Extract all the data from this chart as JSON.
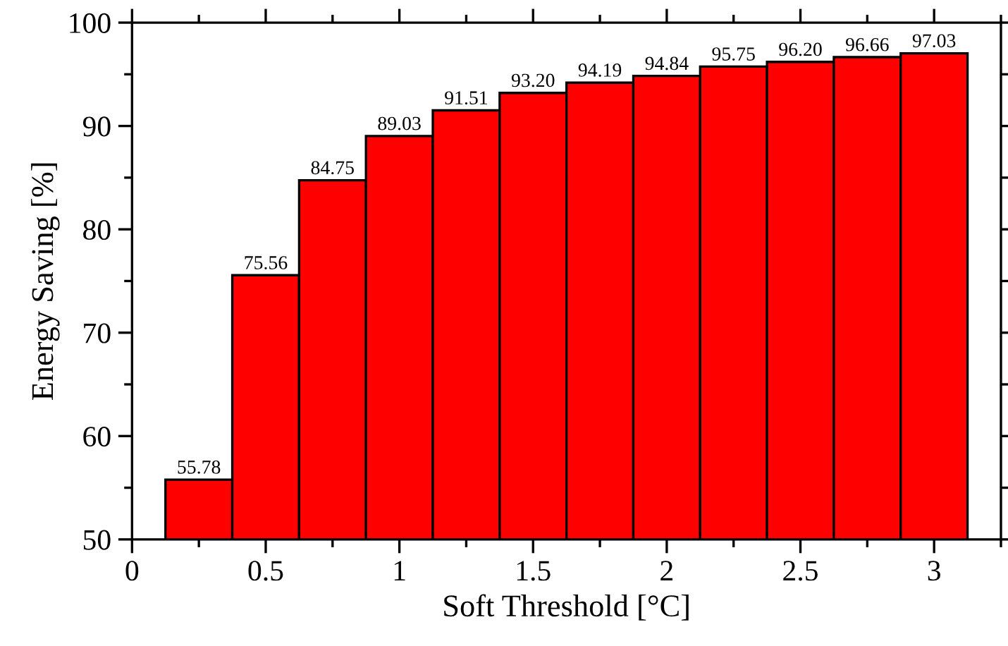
{
  "chart_data": {
    "type": "bar",
    "xlabel": "Soft Threshold [°C]",
    "ylabel": "Energy Saving [%]",
    "x": [
      0.25,
      0.5,
      0.75,
      1.0,
      1.25,
      1.5,
      1.75,
      2.0,
      2.25,
      2.5,
      2.75,
      3.0
    ],
    "series": [
      {
        "color": "#ff0000",
        "values": [
          55.78,
          75.56,
          84.75,
          89.03,
          91.51,
          93.2,
          94.19,
          94.84,
          95.75,
          96.2,
          96.66,
          97.03
        ],
        "value_labels": [
          "55.78",
          "75.56",
          "84.75",
          "89.03",
          "91.51",
          "93.20",
          "94.19",
          "94.84",
          "95.75",
          "96.20",
          "96.66",
          "97.03"
        ]
      }
    ],
    "xlim": [
      0,
      3.25
    ],
    "xticks": [
      0,
      0.5,
      1,
      1.5,
      2,
      2.5,
      3
    ],
    "ylim": [
      50,
      100
    ],
    "yticks": [
      50,
      60,
      70,
      80,
      90,
      100
    ],
    "grid": false
  }
}
